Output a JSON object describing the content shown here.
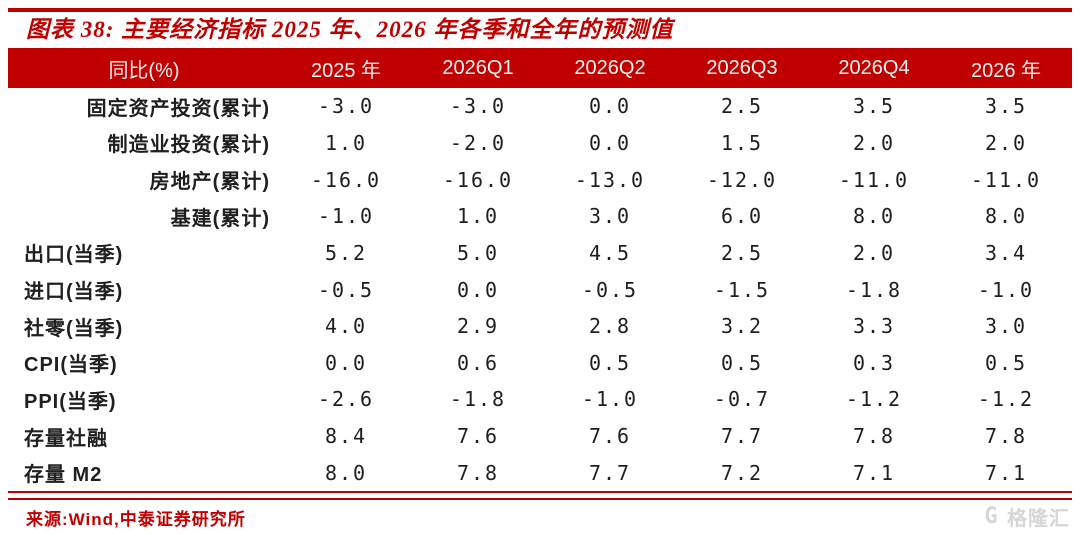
{
  "page": {
    "accent_color": "#c00000",
    "header_text_color": "#fdf2f2",
    "body_text_color": "#1f1f1f",
    "watermark_color": "#d6d6d6",
    "background_color": "#ffffff"
  },
  "chart_data": {
    "type": "table",
    "title": "图表 38:  主要经济指标 2025 年、2026 年各季和全年的预测值",
    "columns": [
      "同比(%)",
      "2025 年",
      "2026Q1",
      "2026Q2",
      "2026Q3",
      "2026Q4",
      "2026 年"
    ],
    "rows": [
      {
        "label": "固定资产投资(累计)",
        "label_align": "right",
        "values": [
          "-3.0",
          "-3.0",
          "0.0",
          "2.5",
          "3.5",
          "3.5"
        ]
      },
      {
        "label": "制造业投资(累计)",
        "label_align": "right",
        "values": [
          "1.0",
          "-2.0",
          "0.0",
          "1.5",
          "2.0",
          "2.0"
        ]
      },
      {
        "label": "房地产(累计)",
        "label_align": "right",
        "values": [
          "-16.0",
          "-16.0",
          "-13.0",
          "-12.0",
          "-11.0",
          "-11.0"
        ]
      },
      {
        "label": "基建(累计)",
        "label_align": "right",
        "values": [
          "-1.0",
          "1.0",
          "3.0",
          "6.0",
          "8.0",
          "8.0"
        ]
      },
      {
        "label": "出口(当季)",
        "label_align": "left",
        "values": [
          "5.2",
          "5.0",
          "4.5",
          "2.5",
          "2.0",
          "3.4"
        ]
      },
      {
        "label": "进口(当季)",
        "label_align": "left",
        "values": [
          "-0.5",
          "0.0",
          "-0.5",
          "-1.5",
          "-1.8",
          "-1.0"
        ]
      },
      {
        "label": "社零(当季)",
        "label_align": "left",
        "values": [
          "4.0",
          "2.9",
          "2.8",
          "3.2",
          "3.3",
          "3.0"
        ]
      },
      {
        "label": "CPI(当季)",
        "label_align": "left",
        "values": [
          "0.0",
          "0.6",
          "0.5",
          "0.5",
          "0.3",
          "0.5"
        ]
      },
      {
        "label": "PPI(当季)",
        "label_align": "left",
        "values": [
          "-2.6",
          "-1.8",
          "-1.0",
          "-0.7",
          "-1.2",
          "-1.2"
        ]
      },
      {
        "label": "存量社融",
        "label_align": "left",
        "values": [
          "8.4",
          "7.6",
          "7.6",
          "7.7",
          "7.8",
          "7.8"
        ]
      },
      {
        "label": "存量 M2",
        "label_align": "left",
        "values": [
          "8.0",
          "7.8",
          "7.7",
          "7.2",
          "7.1",
          "7.1"
        ]
      }
    ],
    "source": "来源:Wind,中泰证券研究所"
  },
  "watermark": {
    "icon": "G",
    "text": "格隆汇"
  }
}
